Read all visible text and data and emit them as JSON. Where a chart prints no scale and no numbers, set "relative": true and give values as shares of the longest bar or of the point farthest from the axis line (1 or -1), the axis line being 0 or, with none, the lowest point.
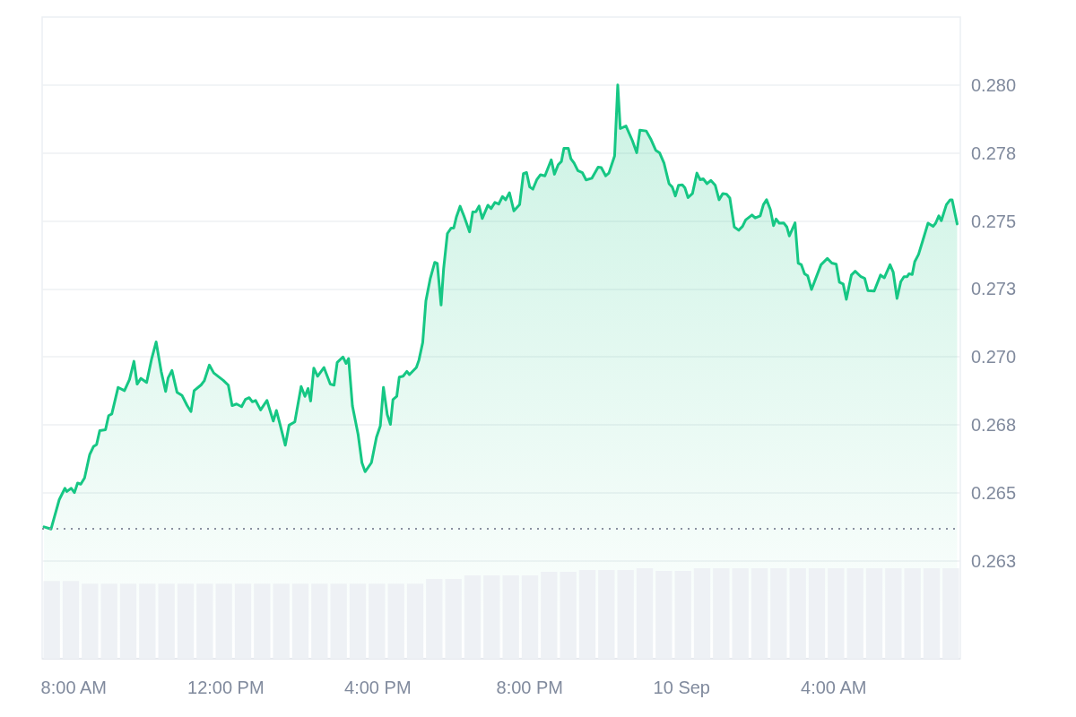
{
  "chart_data": [
    {
      "type": "area",
      "grid": "y",
      "color": "#16c784",
      "xlim": [
        "--09-09T07:10",
        "--09-10T07:20"
      ],
      "xticks": [
        {
          "value": "--09-09T08:00",
          "label": "8:00 AM"
        },
        {
          "value": "--09-09T12:00",
          "label": "12:00 PM"
        },
        {
          "value": "--09-09T16:00",
          "label": "4:00 PM"
        },
        {
          "value": "--09-09T20:00",
          "label": "8:00 PM"
        },
        {
          "value": "--09-10T00:00",
          "label": "10 Sep"
        },
        {
          "value": "--09-10T04:00",
          "label": "4:00 AM"
        }
      ],
      "ylim": [
        0.2589,
        0.2825
      ],
      "yticks": [
        {
          "value": 0.2625,
          "label": "0.263"
        },
        {
          "value": 0.265,
          "label": "0.265"
        },
        {
          "value": 0.2675,
          "label": "0.268"
        },
        {
          "value": 0.27,
          "label": "0.270"
        },
        {
          "value": 0.2725,
          "label": "0.273"
        },
        {
          "value": 0.275,
          "label": "0.275"
        },
        {
          "value": 0.2775,
          "label": "0.278"
        },
        {
          "value": 0.28,
          "label": "0.280"
        }
      ],
      "ref_lines": [
        {
          "axis": "y",
          "value": 0.26368,
          "color": "#8a91a0",
          "line_style": "dotted"
        }
      ],
      "x": [
        "--09-09T07:13",
        "--09-09T07:24",
        "--09-09T07:37",
        "--09-09T07:46",
        "--09-09T07:49",
        "--09-09T07:56",
        "--09-09T08:01",
        "--09-09T08:06",
        "--09-09T08:11",
        "--09-09T08:17",
        "--09-09T08:25",
        "--09-09T08:31",
        "--09-09T08:36",
        "--09-09T08:41",
        "--09-09T08:50",
        "--09-09T08:55",
        "--09-09T09:00",
        "--09-09T09:10",
        "--09-09T09:20",
        "--09-09T09:28",
        "--09-09T09:35",
        "--09-09T09:40",
        "--09-09T09:46",
        "--09-09T09:55",
        "--09-09T10:03",
        "--09-09T10:10",
        "--09-09T10:18",
        "--09-09T10:25",
        "--09-09T10:29",
        "--09-09T10:35",
        "--09-09T10:43",
        "--09-09T10:51",
        "--09-09T10:59",
        "--09-09T11:05",
        "--09-09T11:10",
        "--09-09T11:21",
        "--09-09T11:26",
        "--09-09T11:34",
        "--09-09T11:41",
        "--09-09T11:56",
        "--09-09T12:04",
        "--09-09T12:10",
        "--09-09T12:17",
        "--09-09T12:25",
        "--09-09T12:31",
        "--09-09T12:37",
        "--09-09T12:42",
        "--09-09T12:47",
        "--09-09T12:55",
        "--09-09T13:05",
        "--09-09T13:15",
        "--09-09T13:20",
        "--09-09T13:26",
        "--09-09T13:34",
        "--09-09T13:40",
        "--09-09T13:49",
        "--09-09T13:59",
        "--09-09T14:05",
        "--09-09T14:10",
        "--09-09T14:14",
        "--09-09T14:19",
        "--09-09T14:25",
        "--09-09T14:35",
        "--09-09T14:45",
        "--09-09T14:51",
        "--09-09T14:56",
        "--09-09T15:05",
        "--09-09T15:10",
        "--09-09T15:14",
        "--09-09T15:20",
        "--09-09T15:29",
        "--09-09T15:35",
        "--09-09T15:40",
        "--09-09T15:50",
        "--09-09T15:58",
        "--09-09T16:04",
        "--09-09T16:09",
        "--09-09T16:15",
        "--09-09T16:20",
        "--09-09T16:24",
        "--09-09T16:30",
        "--09-09T16:34",
        "--09-09T16:40",
        "--09-09T16:46",
        "--09-09T16:50",
        "--09-09T17:01",
        "--09-09T17:05",
        "--09-09T17:11",
        "--09-09T17:16",
        "--09-09T17:23",
        "--09-09T17:30",
        "--09-09T17:34",
        "--09-09T17:40",
        "--09-09T17:44",
        "--09-09T17:50",
        "--09-09T17:56",
        "--09-09T18:00",
        "--09-09T18:04",
        "--09-09T18:10",
        "--09-09T18:16",
        "--09-09T18:25",
        "--09-09T18:30",
        "--09-09T18:35",
        "--09-09T18:40",
        "--09-09T18:45",
        "--09-09T18:54",
        "--09-09T18:59",
        "--09-09T19:05",
        "--09-09T19:11",
        "--09-09T19:17",
        "--09-09T19:22",
        "--09-09T19:28",
        "--09-09T19:35",
        "--09-09T19:44",
        "--09-09T19:50",
        "--09-09T19:55",
        "--09-09T20:00",
        "--09-09T20:05",
        "--09-09T20:11",
        "--09-09T20:17",
        "--09-09T20:24",
        "--09-09T20:34",
        "--09-09T20:39",
        "--09-09T20:45",
        "--09-09T20:50",
        "--09-09T20:54",
        "--09-09T21:01",
        "--09-09T21:05",
        "--09-09T21:10",
        "--09-09T21:16",
        "--09-09T21:23",
        "--09-09T21:29",
        "--09-09T21:38",
        "--09-09T21:48",
        "--09-09T21:53",
        "--09-09T22:00",
        "--09-09T22:05",
        "--09-09T22:14",
        "--09-09T22:19",
        "--09-09T22:23",
        "--09-09T22:32",
        "--09-09T22:42",
        "--09-09T22:49",
        "--09-09T22:54",
        "--09-09T23:04",
        "--09-09T23:11",
        "--09-09T23:19",
        "--09-09T23:25",
        "--09-09T23:32",
        "--09-09T23:40",
        "--09-09T23:45",
        "--09-09T23:50",
        "--09-09T23:55",
        "--09-10T00:01",
        "--09-10T00:05",
        "--09-10T00:10",
        "--09-10T00:17",
        "--09-10T00:24",
        "--09-10T00:29",
        "--09-10T00:34",
        "--09-10T00:40",
        "--09-10T00:46",
        "--09-10T00:53",
        "--09-10T00:59",
        "--09-10T01:05",
        "--09-10T01:11",
        "--09-10T01:16",
        "--09-10T01:23",
        "--09-10T01:30",
        "--09-10T01:36",
        "--09-10T01:41",
        "--09-10T01:51",
        "--09-10T01:56",
        "--09-10T02:04",
        "--09-10T02:09",
        "--09-10T02:14",
        "--09-10T02:20",
        "--09-10T02:25",
        "--09-10T02:29",
        "--09-10T02:34",
        "--09-10T02:41",
        "--09-10T02:46",
        "--09-10T02:50",
        "--09-10T02:59",
        "--09-10T03:04",
        "--09-10T03:09",
        "--09-10T03:14",
        "--09-10T03:19",
        "--09-10T03:25",
        "--09-10T03:40",
        "--09-10T03:50",
        "--09-10T03:57",
        "--09-10T04:04",
        "--09-10T04:09",
        "--09-10T04:15",
        "--09-10T04:20",
        "--09-10T04:28",
        "--09-10T04:34",
        "--09-10T04:43",
        "--09-10T04:49",
        "--09-10T04:54",
        "--09-10T05:04",
        "--09-10T05:14",
        "--09-10T05:20",
        "--09-10T05:29",
        "--09-10T05:34",
        "--09-10T05:40",
        "--09-10T05:46",
        "--09-10T05:51",
        "--09-10T05:56",
        "--09-10T05:59",
        "--09-10T06:04",
        "--09-10T06:08",
        "--09-10T06:14",
        "--09-10T06:21",
        "--09-10T06:29",
        "--09-10T06:37",
        "--09-10T06:41",
        "--09-10T06:46",
        "--09-10T06:50",
        "--09-10T06:58",
        "--09-10T07:04",
        "--09-10T07:07",
        "--09-10T07:15"
      ],
      "values": [
        0.26375,
        0.26367,
        0.26475,
        0.26517,
        0.26505,
        0.26517,
        0.26501,
        0.26536,
        0.26532,
        0.26555,
        0.2664,
        0.2667,
        0.26678,
        0.26729,
        0.26732,
        0.26784,
        0.2679,
        0.26888,
        0.26876,
        0.26917,
        0.26984,
        0.269,
        0.26921,
        0.26906,
        0.26994,
        0.27055,
        0.26947,
        0.26873,
        0.26923,
        0.2695,
        0.2687,
        0.26858,
        0.26821,
        0.26799,
        0.26876,
        0.26897,
        0.26912,
        0.2697,
        0.26941,
        0.26914,
        0.26896,
        0.26821,
        0.26827,
        0.26817,
        0.26844,
        0.2685,
        0.26835,
        0.2684,
        0.26805,
        0.2684,
        0.26764,
        0.26803,
        0.26749,
        0.26675,
        0.26749,
        0.26761,
        0.26891,
        0.26855,
        0.26884,
        0.26838,
        0.26959,
        0.26929,
        0.26961,
        0.269,
        0.26896,
        0.2698,
        0.27,
        0.26976,
        0.26994,
        0.2682,
        0.26715,
        0.26611,
        0.26578,
        0.26611,
        0.26705,
        0.26746,
        0.26888,
        0.26788,
        0.26752,
        0.26843,
        0.26855,
        0.26926,
        0.26929,
        0.26947,
        0.26935,
        0.26961,
        0.26988,
        0.27053,
        0.27206,
        0.27289,
        0.27348,
        0.27344,
        0.27191,
        0.27324,
        0.27454,
        0.27474,
        0.27474,
        0.27513,
        0.27554,
        0.27519,
        0.2746,
        0.27533,
        0.27534,
        0.27555,
        0.27509,
        0.27558,
        0.27546,
        0.27568,
        0.27562,
        0.2759,
        0.27578,
        0.27604,
        0.27537,
        0.2756,
        0.27674,
        0.27678,
        0.27625,
        0.27617,
        0.27651,
        0.2767,
        0.27666,
        0.27725,
        0.27672,
        0.27707,
        0.27719,
        0.27767,
        0.27767,
        0.27729,
        0.27713,
        0.27685,
        0.27678,
        0.27651,
        0.27657,
        0.27698,
        0.27696,
        0.27666,
        0.27676,
        0.27739,
        0.28,
        0.2784,
        0.27849,
        0.27796,
        0.27751,
        0.27834,
        0.27831,
        0.27802,
        0.2776,
        0.27751,
        0.27713,
        0.27637,
        0.27625,
        0.27592,
        0.27631,
        0.27633,
        0.27622,
        0.27586,
        0.27601,
        0.27676,
        0.27652,
        0.27655,
        0.27637,
        0.27649,
        0.27631,
        0.27578,
        0.27601,
        0.27598,
        0.27584,
        0.27478,
        0.27466,
        0.2748,
        0.27504,
        0.27522,
        0.27511,
        0.27519,
        0.2756,
        0.27578,
        0.27542,
        0.27483,
        0.27507,
        0.27492,
        0.27493,
        0.27478,
        0.27445,
        0.27493,
        0.27345,
        0.27339,
        0.27306,
        0.27298,
        0.27248,
        0.27339,
        0.27362,
        0.27345,
        0.27341,
        0.27275,
        0.27268,
        0.27212,
        0.27301,
        0.27315,
        0.27295,
        0.27289,
        0.27244,
        0.27242,
        0.27301,
        0.27291,
        0.27339,
        0.27312,
        0.27215,
        0.27277,
        0.27295,
        0.27295,
        0.27306,
        0.27303,
        0.2735,
        0.27377,
        0.2743,
        0.27492,
        0.2748,
        0.27492,
        0.27519,
        0.27501,
        0.2756,
        0.27578,
        0.27578,
        0.27489
      ]
    },
    {
      "type": "bar",
      "relative": true,
      "tick_labels": false,
      "color": "#eef1f5",
      "categories": [
        null,
        null,
        null,
        null,
        null,
        null,
        null,
        null,
        null,
        null,
        null,
        null,
        null,
        null,
        null,
        null,
        null,
        null,
        null,
        null,
        null,
        null,
        null,
        null,
        null,
        null,
        null,
        null,
        null,
        null,
        null,
        null,
        null,
        null,
        null,
        null,
        null,
        null,
        null,
        null,
        null,
        null,
        null,
        null,
        null,
        null,
        null,
        null
      ],
      "values": [
        0.86,
        0.86,
        0.83,
        0.83,
        0.83,
        0.83,
        0.83,
        0.83,
        0.83,
        0.83,
        0.83,
        0.83,
        0.83,
        0.83,
        0.83,
        0.83,
        0.83,
        0.83,
        0.83,
        0.83,
        0.88,
        0.88,
        0.92,
        0.92,
        0.92,
        0.92,
        0.96,
        0.96,
        0.98,
        0.98,
        0.98,
        1,
        0.97,
        0.97,
        1,
        1,
        1,
        1,
        1,
        1,
        1,
        1,
        1,
        1,
        1,
        1,
        1,
        1
      ]
    }
  ]
}
